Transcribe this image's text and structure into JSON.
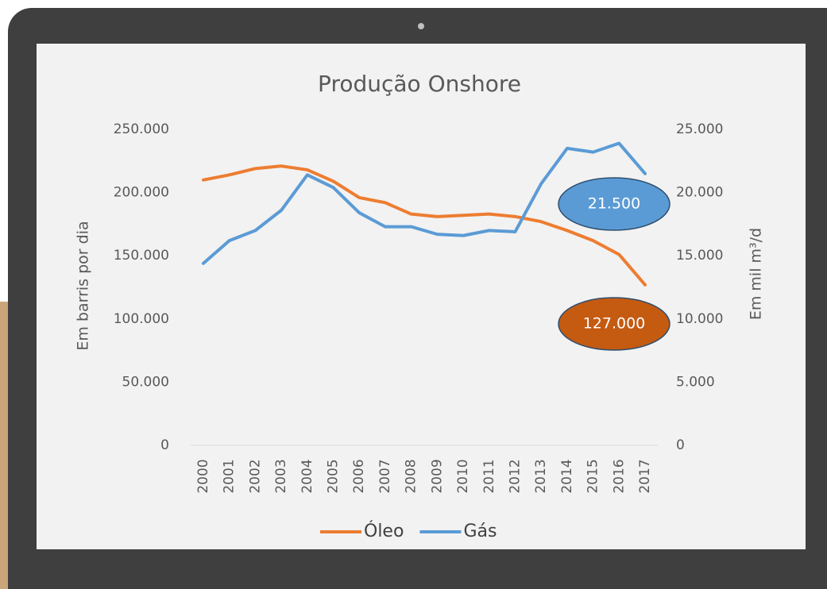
{
  "chart_data": {
    "type": "line",
    "title": "Produção Onshore",
    "y_label": "Em barris por dia",
    "y2_label": "Em mil m³/d",
    "categories": [
      "2000",
      "2001",
      "2002",
      "2003",
      "2004",
      "2005",
      "2006",
      "2007",
      "2008",
      "2009",
      "2010",
      "2011",
      "2012",
      "2013",
      "2014",
      "2015",
      "2016",
      "2017"
    ],
    "series": [
      {
        "name": "Óleo",
        "color": "#ed7d31",
        "values": [
          210000,
          214000,
          219000,
          221000,
          218000,
          209000,
          196000,
          192000,
          183000,
          181000,
          182000,
          183000,
          181000,
          177000,
          170000,
          162000,
          151000,
          127000
        ]
      },
      {
        "name": "Gás",
        "color": "#5b9bd5",
        "axis": "y2",
        "values": [
          14400,
          16200,
          17000,
          18600,
          21400,
          20400,
          18400,
          17300,
          17300,
          16700,
          16600,
          17000,
          16900,
          20700,
          23500,
          23200,
          23900,
          21500
        ]
      }
    ],
    "annotations": [
      {
        "text": "21.500",
        "color": "#5b9bd5"
      },
      {
        "text": "127.000",
        "color": "#c55a11"
      }
    ],
    "ylim": [
      0,
      250000
    ],
    "yticks": [
      {
        "value": 0,
        "label": "0"
      },
      {
        "value": 50000,
        "label": "50.000"
      },
      {
        "value": 100000,
        "label": "100.000"
      },
      {
        "value": 150000,
        "label": "150.000"
      },
      {
        "value": 200000,
        "label": "200.000"
      },
      {
        "value": 250000,
        "label": "250.000"
      }
    ],
    "y2lim": [
      0,
      25000
    ],
    "y2ticks": [
      {
        "value": 0,
        "label": "0"
      },
      {
        "value": 5000,
        "label": "5.000"
      },
      {
        "value": 10000,
        "label": "10.000"
      },
      {
        "value": 15000,
        "label": "15.000"
      },
      {
        "value": 20000,
        "label": "20.000"
      },
      {
        "value": 25000,
        "label": "25.000"
      }
    ],
    "grid": false,
    "legend": "bottom"
  }
}
